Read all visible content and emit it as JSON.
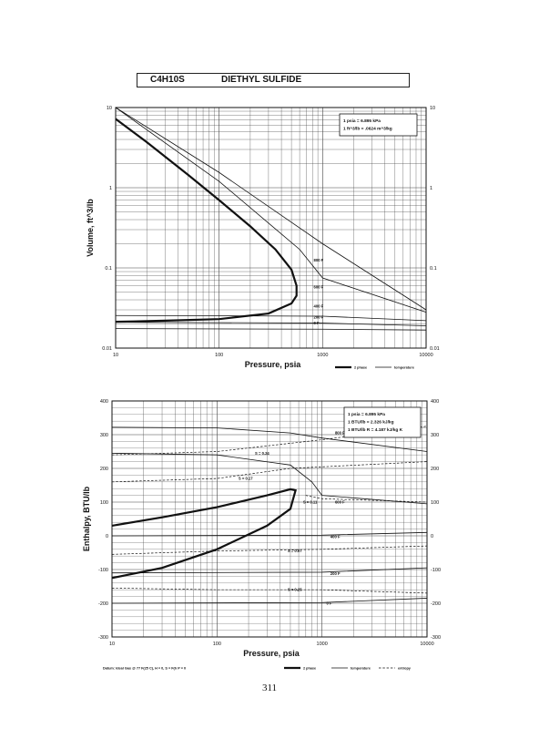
{
  "header": {
    "formula": "C4H10S",
    "name": "DIETHYL SULFIDE"
  },
  "page_number": "311",
  "chart_data": [
    {
      "type": "line",
      "xscale": "log",
      "yscale": "log",
      "xlabel": "Pressure,  psia",
      "ylabel": "Volume, ft^3/lb",
      "xlim": [
        10,
        10000
      ],
      "ylim": [
        0.01,
        10
      ],
      "xticks": [
        "10",
        "100",
        "1000",
        "10000"
      ],
      "yticks_left": [
        "10",
        "1",
        "0.1",
        "0.01"
      ],
      "yticks_right": [
        "10",
        "1",
        "0.1",
        "0.01"
      ],
      "grid": true,
      "notes": [
        "1 psia = 6.895 kPa",
        "1 ft^3/lb = .0624 m^3/kg"
      ],
      "legend": {
        "placement": "bottom-right",
        "entries": [
          "2 phase",
          "temperature"
        ]
      },
      "series": [
        {
          "name": "2 phase",
          "role": "saturation",
          "x": [
            10,
            20,
            50,
            100,
            200,
            350,
            500,
            560,
            560,
            500,
            300,
            100,
            30,
            15,
            10
          ],
          "y": [
            7.2,
            3.7,
            1.45,
            0.7,
            0.33,
            0.17,
            0.095,
            0.06,
            0.045,
            0.036,
            0.027,
            0.023,
            0.022,
            0.0215,
            0.0213
          ]
        },
        {
          "name": "800 F",
          "role": "temperature",
          "x": [
            10,
            100,
            1000,
            10000
          ],
          "y": [
            10,
            1.55,
            0.2,
            0.03
          ]
        },
        {
          "name": "600 F",
          "role": "temperature",
          "x": [
            10,
            100,
            600,
            1000,
            10000
          ],
          "y": [
            10,
            1.2,
            0.17,
            0.075,
            0.028
          ]
        },
        {
          "name": "400 F",
          "role": "temperature",
          "x": [
            10,
            1000,
            10000
          ],
          "y": [
            0.0255,
            0.025,
            0.022
          ]
        },
        {
          "name": "200 F",
          "role": "temperature",
          "x": [
            10,
            1000,
            10000
          ],
          "y": [
            0.021,
            0.0205,
            0.019
          ]
        },
        {
          "name": "0 F",
          "role": "temperature",
          "x": [
            10,
            1000,
            10000
          ],
          "y": [
            0.0175,
            0.0172,
            0.0168
          ]
        }
      ]
    },
    {
      "type": "line",
      "xscale": "log",
      "yscale": "linear",
      "xlabel": "Pressure,  psia",
      "ylabel": "Enthalpy,  BTU/lb",
      "xlim": [
        10,
        10000
      ],
      "ylim": [
        -300,
        400
      ],
      "xticks": [
        "10",
        "100",
        "1000",
        "10000"
      ],
      "yticks_left": [
        "400",
        "300",
        "200",
        "100",
        "0",
        "-100",
        "-200",
        "-300"
      ],
      "yticks_right": [
        "400",
        "300",
        "200",
        "100",
        "0",
        "-100",
        "-200",
        "-300"
      ],
      "grid": true,
      "notes": [
        "1 psia = 6.895 kPa",
        "1 BTU/lb = 2.326 kJ/kg",
        "1 BTU/lb R = 4.187 kJ/kg K"
      ],
      "datum": "Datum: Ideal Gas @ 77 F(25 C),  H = 0,  S = F(h P = 0",
      "legend": {
        "placement": "bottom-right",
        "entries": [
          "2 phase",
          "temperature",
          "entropy"
        ]
      },
      "series": [
        {
          "name": "2 phase",
          "role": "saturation",
          "x": [
            10,
            30,
            100,
            300,
            500,
            560,
            500,
            300,
            100,
            30,
            10
          ],
          "y": [
            30,
            55,
            85,
            120,
            138,
            135,
            80,
            30,
            -40,
            -95,
            -125
          ]
        },
        {
          "name": "800 F",
          "role": "temperature",
          "x": [
            10,
            100,
            500,
            1000,
            10000
          ],
          "y": [
            322,
            320,
            305,
            290,
            250
          ]
        },
        {
          "name": "600 F",
          "role": "temperature",
          "x": [
            10,
            100,
            500,
            800,
            1000,
            10000
          ],
          "y": [
            245,
            240,
            210,
            160,
            120,
            95
          ]
        },
        {
          "name": "400 F",
          "role": "temperature",
          "x": [
            10,
            1000,
            10000
          ],
          "y": [
            0,
            2,
            10
          ]
        },
        {
          "name": "200 F",
          "role": "temperature",
          "x": [
            10,
            1000,
            10000
          ],
          "y": [
            -110,
            -108,
            -95
          ]
        },
        {
          "name": "0 F",
          "role": "temperature",
          "x": [
            10,
            1000,
            10000
          ],
          "y": [
            -200,
            -198,
            -185
          ]
        },
        {
          "name": "S = 0.24",
          "role": "entropy",
          "x": [
            10,
            100,
            1000,
            10000
          ],
          "y": [
            240,
            250,
            285,
            325
          ]
        },
        {
          "name": "S = 0.17",
          "role": "entropy",
          "x": [
            10,
            100,
            500,
            10000
          ],
          "y": [
            160,
            170,
            200,
            220
          ]
        },
        {
          "name": "S = 0.11",
          "role": "entropy",
          "x": [
            700,
            1000,
            10000
          ],
          "y": [
            120,
            110,
            100
          ]
        },
        {
          "name": "S = 0.07",
          "role": "entropy",
          "x": [
            10,
            100,
            1000,
            10000
          ],
          "y": [
            -55,
            -45,
            -40,
            -30
          ]
        },
        {
          "name": "S = 0.25",
          "role": "entropy",
          "x": [
            10,
            100,
            1000,
            10000
          ],
          "y": [
            -155,
            -160,
            -160,
            -170
          ]
        }
      ],
      "curve_labels": [
        {
          "text": "S = 0.24",
          "x": 230,
          "y": 245
        },
        {
          "text": "S = 0.17",
          "x": 160,
          "y": 170
        },
        {
          "text": "S = 0.11",
          "x": 660,
          "y": 100
        },
        {
          "text": "S = 0.07",
          "x": 470,
          "y": -45
        },
        {
          "text": "S = 0.25",
          "x": 470,
          "y": -160
        },
        {
          "text": "800 F",
          "x": 1330,
          "y": 305
        },
        {
          "text": "600 F",
          "x": 1330,
          "y": 100
        },
        {
          "text": "400 F",
          "x": 1200,
          "y": -3
        },
        {
          "text": "200 F",
          "x": 1200,
          "y": -112
        },
        {
          "text": "0 F",
          "x": 1100,
          "y": -200
        }
      ]
    }
  ]
}
